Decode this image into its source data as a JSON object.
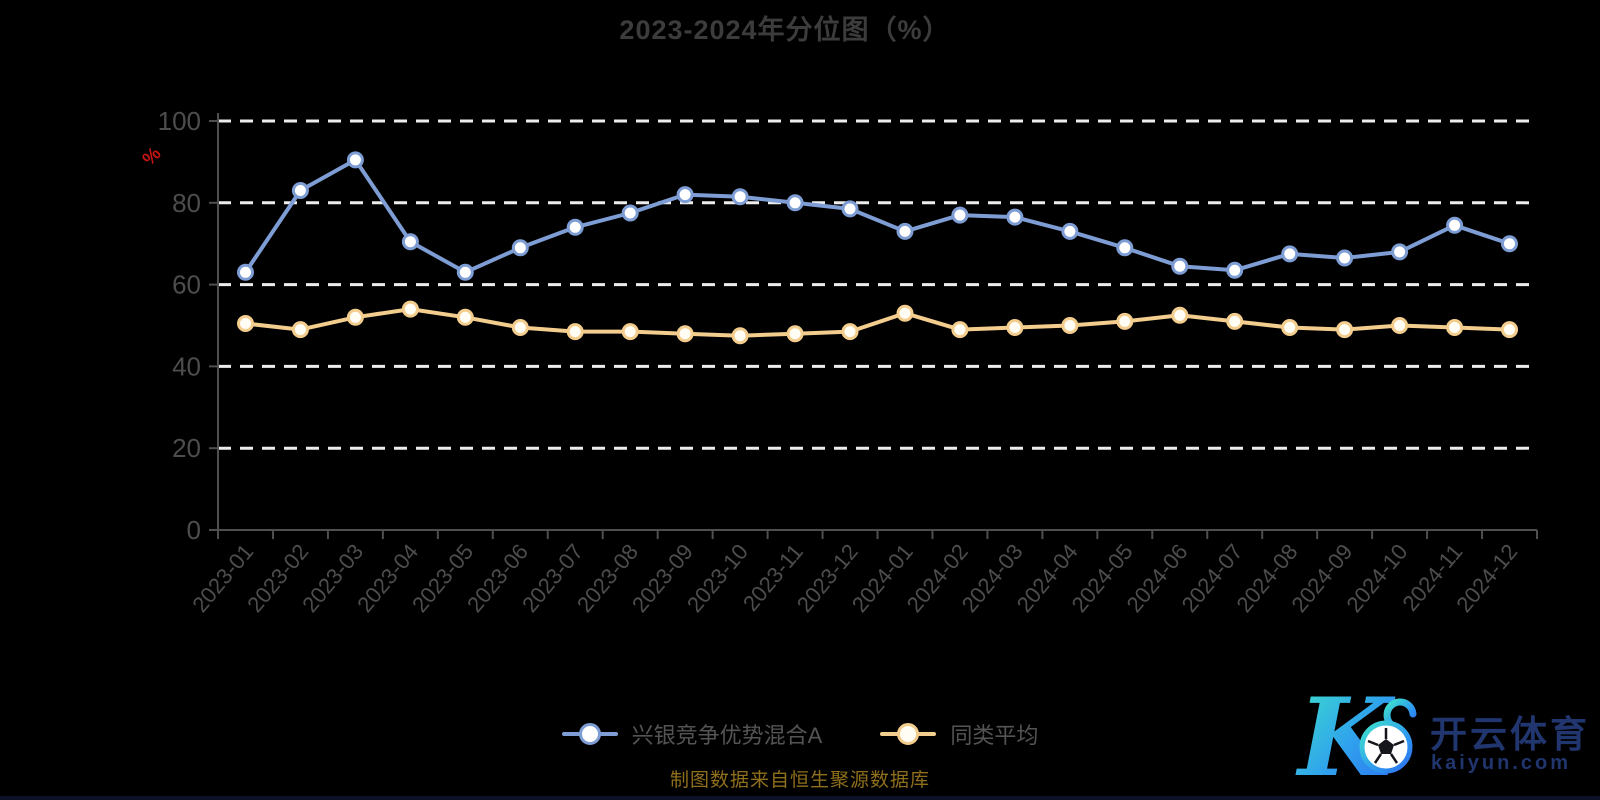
{
  "title": "2023-2024年分位图（%）",
  "chart_data": {
    "type": "line",
    "title": "2023-2024年分位图（%）",
    "xlabel": "",
    "ylabel": "%",
    "ylim": [
      0,
      100
    ],
    "yticks": [
      0,
      20,
      40,
      60,
      80,
      100
    ],
    "grid": "horizontal dashed white lines",
    "legend_position": "bottom-center",
    "categories": [
      "2023-01",
      "2023-02",
      "2023-03",
      "2023-04",
      "2023-05",
      "2023-06",
      "2023-07",
      "2023-08",
      "2023-09",
      "2023-10",
      "2023-11",
      "2023-12",
      "2024-01",
      "2024-02",
      "2024-03",
      "2024-04",
      "2024-05",
      "2024-06",
      "2024-07",
      "2024-08",
      "2024-09",
      "2024-10",
      "2024-11",
      "2024-12"
    ],
    "series": [
      {
        "name": "兴银竞争优势混合A",
        "color": "#7e9dd4",
        "marker_fill": "#ffffff",
        "values": [
          63,
          83,
          90.5,
          70.5,
          63,
          69,
          74,
          77.5,
          82,
          81.5,
          80,
          78.5,
          73,
          77,
          76.5,
          73,
          69,
          64.5,
          63.5,
          67.5,
          66.5,
          68,
          74.5,
          70
        ]
      },
      {
        "name": "同类平均",
        "color": "#f3cd8d",
        "marker_fill": "#fffdf4",
        "values": [
          50.5,
          49,
          52,
          54,
          52,
          49.5,
          48.5,
          48.5,
          48,
          47.5,
          48,
          48.5,
          53,
          49,
          49.5,
          50,
          51,
          52.5,
          51,
          49.5,
          49,
          50,
          49.5,
          49
        ]
      }
    ]
  },
  "source_note": "制图数据来自恒生聚源数据库",
  "logo": {
    "letter": "K",
    "brand": "开云体育",
    "domain": "kaiyun.com"
  },
  "colors": {
    "background": "#000000",
    "title_text": "#3c3c3c",
    "axis_line": "#4f4f4f",
    "tick_label": "#4d4d4d",
    "grid_line": "#ededed",
    "ylabel_red": "#c41414",
    "legend_text": "#545454",
    "source_text": "#8f6f1c",
    "logo_navy": "#21356e",
    "logo_gradient_start": "#3fe3c9",
    "logo_gradient_end": "#2d6cf0"
  }
}
